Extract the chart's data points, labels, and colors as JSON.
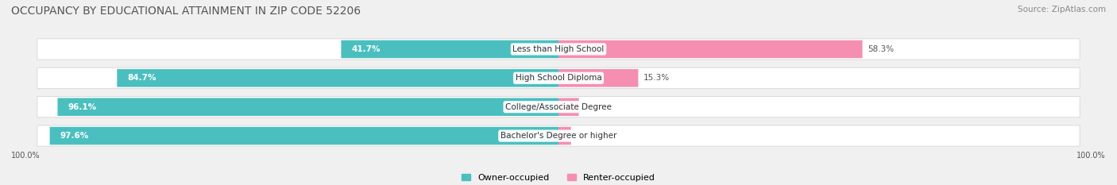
{
  "title": "OCCUPANCY BY EDUCATIONAL ATTAINMENT IN ZIP CODE 52206",
  "source": "Source: ZipAtlas.com",
  "categories": [
    "Less than High School",
    "High School Diploma",
    "College/Associate Degree",
    "Bachelor's Degree or higher"
  ],
  "owner_pct": [
    41.7,
    84.7,
    96.1,
    97.6
  ],
  "renter_pct": [
    58.3,
    15.3,
    3.9,
    2.4
  ],
  "owner_color": "#4bbfbf",
  "renter_color": "#f48fb1",
  "bg_color": "#f0f0f0",
  "row_bg_color": "#e8e8e8",
  "row_bg_light": "#f5f5f5",
  "title_fontsize": 10,
  "source_fontsize": 7.5,
  "label_fontsize": 7.5,
  "pct_fontsize": 7.5,
  "legend_fontsize": 8,
  "axis_label_fontsize": 7,
  "bar_height": 0.62,
  "left_axis_label": "100.0%",
  "right_axis_label": "100.0%",
  "total": 100
}
